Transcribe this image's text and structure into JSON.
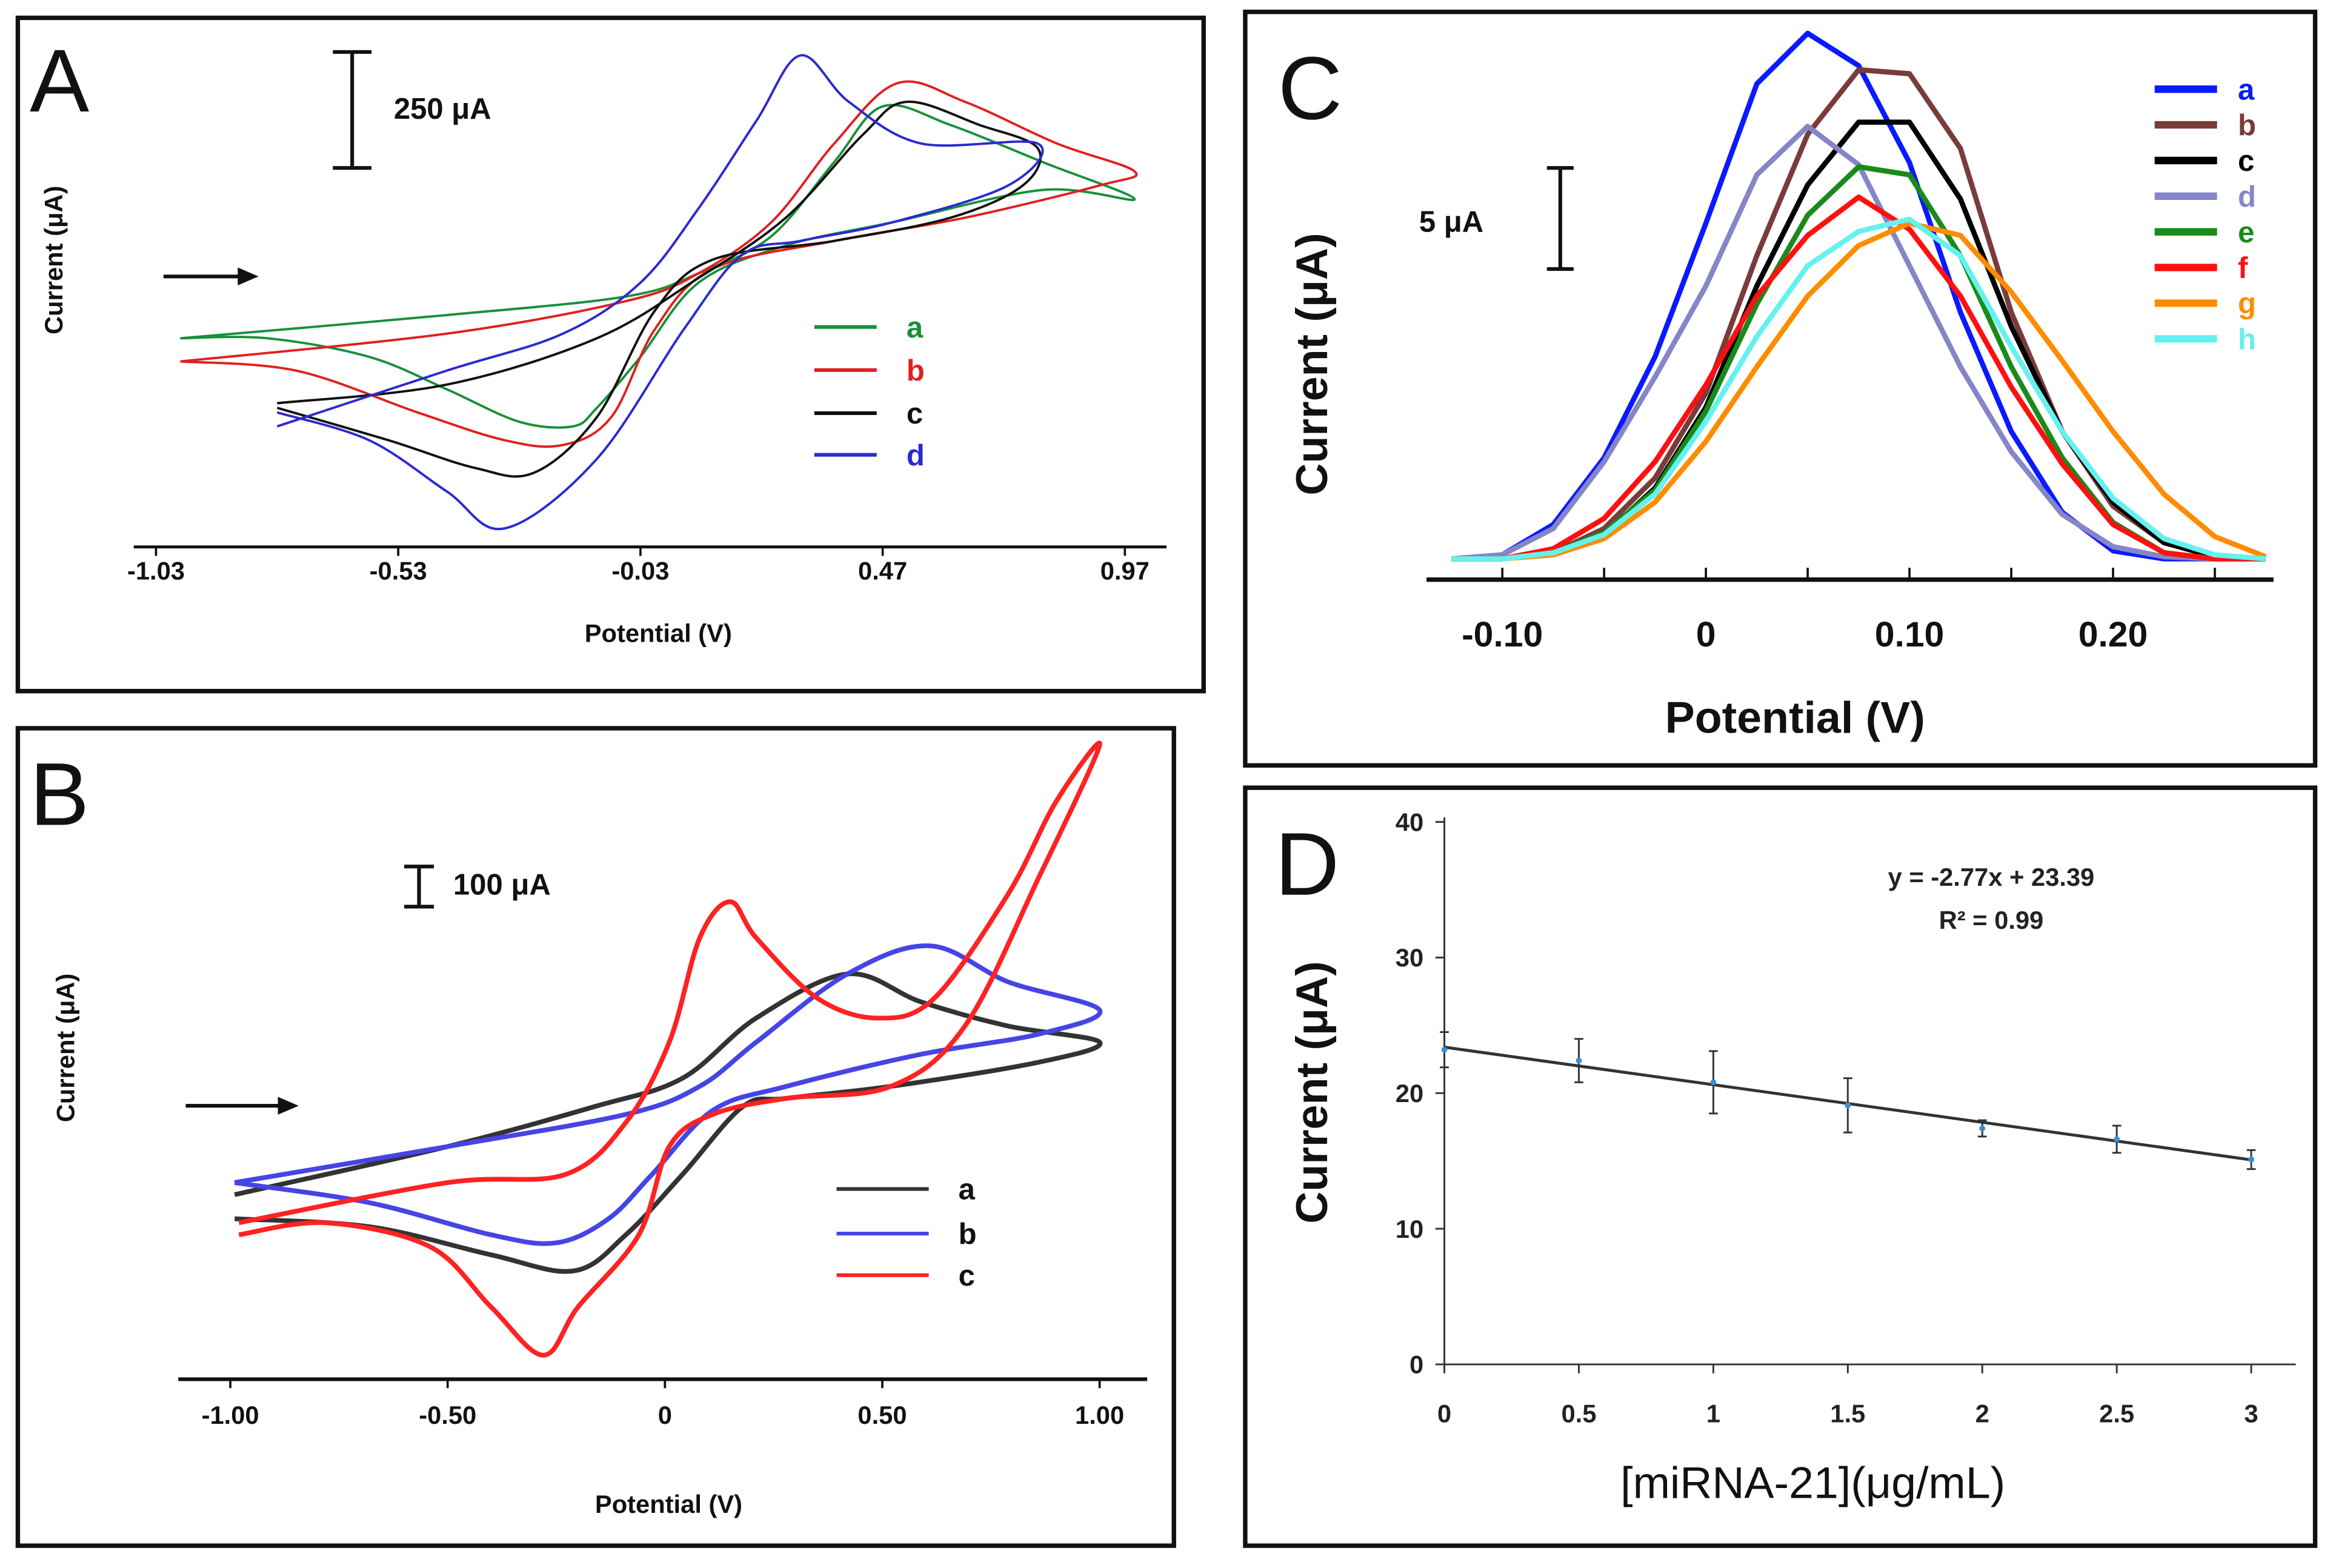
{
  "chart_data": [
    {
      "panel": "A",
      "type": "line",
      "xlabel": "Potential (V)",
      "ylabel": "Current (μA)",
      "scale_bar": "250 μA",
      "scale_bar_value": 250,
      "scan_direction": "arrow-right",
      "xticks": [
        -1.03,
        -0.53,
        -0.03,
        0.47,
        0.97
      ],
      "xtick_labels": [
        "-1.03",
        "-0.53",
        "-0.03",
        "0.47",
        "0.97"
      ],
      "series": [
        {
          "name": "a",
          "color": "#17913a",
          "points": [
            [
              -0.98,
              450
            ],
            [
              -0.43,
              500
            ],
            [
              -0.06,
              540
            ],
            [
              0.09,
              590
            ],
            [
              0.24,
              670
            ],
            [
              0.37,
              830
            ],
            [
              0.47,
              950
            ],
            [
              0.61,
              910
            ],
            [
              0.8,
              830
            ],
            [
              0.99,
              750
            ],
            [
              0.8,
              770
            ],
            [
              0.49,
              700
            ],
            [
              0.27,
              650
            ],
            [
              0.09,
              570
            ],
            [
              -0.03,
              410
            ],
            [
              -0.12,
              300
            ],
            [
              -0.17,
              260
            ],
            [
              -0.28,
              270
            ],
            [
              -0.43,
              340
            ],
            [
              -0.59,
              410
            ],
            [
              -0.8,
              450
            ],
            [
              -0.98,
              450
            ]
          ]
        },
        {
          "name": "b",
          "color": "#e02020",
          "points": [
            [
              -0.98,
              400
            ],
            [
              -0.43,
              460
            ],
            [
              -0.06,
              530
            ],
            [
              0.09,
              590
            ],
            [
              0.24,
              700
            ],
            [
              0.37,
              870
            ],
            [
              0.5,
              1000
            ],
            [
              0.64,
              960
            ],
            [
              0.83,
              870
            ],
            [
              0.99,
              810
            ],
            [
              0.92,
              780
            ],
            [
              0.64,
              710
            ],
            [
              0.37,
              660
            ],
            [
              0.12,
              600
            ],
            [
              0.0,
              470
            ],
            [
              -0.09,
              280
            ],
            [
              -0.19,
              220
            ],
            [
              -0.31,
              230
            ],
            [
              -0.49,
              290
            ],
            [
              -0.74,
              380
            ],
            [
              -0.98,
              400
            ]
          ]
        },
        {
          "name": "c",
          "color": "#111111",
          "points": [
            [
              -0.78,
              310
            ],
            [
              -0.43,
              350
            ],
            [
              -0.12,
              450
            ],
            [
              0.09,
              580
            ],
            [
              0.27,
              710
            ],
            [
              0.43,
              890
            ],
            [
              0.52,
              960
            ],
            [
              0.67,
              910
            ],
            [
              0.79,
              860
            ],
            [
              0.76,
              780
            ],
            [
              0.61,
              710
            ],
            [
              0.37,
              660
            ],
            [
              0.12,
              620
            ],
            [
              0.0,
              510
            ],
            [
              -0.12,
              280
            ],
            [
              -0.25,
              160
            ],
            [
              -0.37,
              170
            ],
            [
              -0.55,
              230
            ],
            [
              -0.78,
              300
            ]
          ]
        },
        {
          "name": "d",
          "color": "#2a2ad0",
          "points": [
            [
              -0.78,
              260
            ],
            [
              -0.43,
              380
            ],
            [
              -0.19,
              460
            ],
            [
              -0.03,
              570
            ],
            [
              0.09,
              730
            ],
            [
              0.21,
              920
            ],
            [
              0.3,
              1060
            ],
            [
              0.4,
              960
            ],
            [
              0.55,
              870
            ],
            [
              0.79,
              870
            ],
            [
              0.73,
              780
            ],
            [
              0.49,
              700
            ],
            [
              0.3,
              660
            ],
            [
              0.18,
              630
            ],
            [
              0.06,
              470
            ],
            [
              -0.12,
              190
            ],
            [
              -0.31,
              40
            ],
            [
              -0.43,
              120
            ],
            [
              -0.59,
              230
            ],
            [
              -0.78,
              290
            ]
          ]
        }
      ]
    },
    {
      "panel": "B",
      "type": "line",
      "xlabel": "Potential (V)",
      "ylabel": "Current (μA)",
      "scale_bar": "100 μA",
      "scale_bar_value": 100,
      "scan_direction": "arrow-right",
      "xticks": [
        -1.0,
        -0.5,
        0,
        0.5,
        1.0
      ],
      "xtick_labels": [
        "-1.00",
        "-0.50",
        "0",
        "0.50",
        "1.00"
      ],
      "series": [
        {
          "name": "a",
          "color": "#333333",
          "points": [
            [
              -0.99,
              460
            ],
            [
              -0.5,
              580
            ],
            [
              -0.16,
              680
            ],
            [
              0.04,
              750
            ],
            [
              0.21,
              900
            ],
            [
              0.42,
              1010
            ],
            [
              0.59,
              940
            ],
            [
              0.79,
              880
            ],
            [
              1.0,
              840
            ],
            [
              0.86,
              790
            ],
            [
              0.52,
              730
            ],
            [
              0.28,
              700
            ],
            [
              0.18,
              680
            ],
            [
              0.04,
              510
            ],
            [
              -0.09,
              360
            ],
            [
              -0.21,
              270
            ],
            [
              -0.4,
              310
            ],
            [
              -0.68,
              380
            ],
            [
              -0.99,
              400
            ]
          ]
        },
        {
          "name": "b",
          "color": "#4545e6",
          "points": [
            [
              -0.99,
              490
            ],
            [
              -0.5,
              580
            ],
            [
              -0.09,
              660
            ],
            [
              0.08,
              730
            ],
            [
              0.21,
              840
            ],
            [
              0.42,
              1010
            ],
            [
              0.61,
              1080
            ],
            [
              0.79,
              990
            ],
            [
              1.0,
              920
            ],
            [
              0.86,
              860
            ],
            [
              0.59,
              810
            ],
            [
              0.28,
              730
            ],
            [
              0.11,
              670
            ],
            [
              -0.03,
              510
            ],
            [
              -0.13,
              400
            ],
            [
              -0.25,
              340
            ],
            [
              -0.4,
              360
            ],
            [
              -0.68,
              440
            ],
            [
              -0.99,
              490
            ]
          ]
        },
        {
          "name": "c",
          "color": "#ff2222",
          "points": [
            [
              -0.98,
              390
            ],
            [
              -0.5,
              490
            ],
            [
              -0.23,
              510
            ],
            [
              -0.09,
              640
            ],
            [
              0.01,
              840
            ],
            [
              0.08,
              1100
            ],
            [
              0.15,
              1190
            ],
            [
              0.21,
              1100
            ],
            [
              0.35,
              950
            ],
            [
              0.49,
              900
            ],
            [
              0.62,
              950
            ],
            [
              0.79,
              1210
            ],
            [
              0.9,
              1440
            ],
            [
              1.0,
              1580
            ],
            [
              0.86,
              1250
            ],
            [
              0.69,
              880
            ],
            [
              0.52,
              730
            ],
            [
              0.28,
              700
            ],
            [
              0.11,
              660
            ],
            [
              0.01,
              580
            ],
            [
              -0.06,
              360
            ],
            [
              -0.2,
              180
            ],
            [
              -0.28,
              60
            ],
            [
              -0.4,
              180
            ],
            [
              -0.54,
              330
            ],
            [
              -0.78,
              390
            ],
            [
              -0.98,
              360
            ]
          ]
        }
      ]
    },
    {
      "panel": "C",
      "type": "line",
      "xlabel": "Potential (V)",
      "ylabel": "Current (μA)",
      "scale_bar": "5 μA",
      "scale_bar_value": 5,
      "xticks": [
        -0.1,
        0,
        0.1,
        0.2
      ],
      "xtick_labels": [
        "-0.10",
        "0",
        "0.10",
        "0.20"
      ],
      "x": [
        -0.125,
        -0.1,
        -0.075,
        -0.05,
        -0.025,
        0,
        0.025,
        0.05,
        0.075,
        0.1,
        0.125,
        0.15,
        0.175,
        0.2,
        0.225,
        0.25,
        0.275
      ],
      "series": [
        {
          "name": "a",
          "color": "#0a1aff",
          "values": [
            0,
            0.2,
            1.7,
            5.0,
            10,
            16.6,
            23.5,
            26,
            24.4,
            19.6,
            12.2,
            6.3,
            2.3,
            0.4,
            0,
            0,
            0
          ]
        },
        {
          "name": "b",
          "color": "#7a3b3b",
          "values": [
            0,
            0,
            0.3,
            1.5,
            4,
            8.2,
            15,
            21,
            24.2,
            24,
            20.3,
            12.2,
            6.3,
            2.6,
            0.8,
            0.1,
            0
          ]
        },
        {
          "name": "c",
          "color": "#000000",
          "values": [
            0,
            0,
            0.3,
            1.2,
            3.5,
            7.5,
            13.5,
            18.5,
            21.6,
            21.6,
            17.8,
            11.5,
            6.3,
            2.8,
            0.8,
            0.1,
            0
          ]
        },
        {
          "name": "d",
          "color": "#8585c8",
          "values": [
            0,
            0.2,
            1.5,
            4.8,
            9,
            13.5,
            19,
            21.4,
            19.5,
            14.5,
            9.5,
            5.3,
            2.2,
            0.6,
            0.1,
            0,
            0
          ]
        },
        {
          "name": "e",
          "color": "#1a8a1a",
          "values": [
            0,
            0,
            0.3,
            1.3,
            3.4,
            7.3,
            12.6,
            17,
            19.4,
            19,
            15,
            9.5,
            5,
            1.8,
            0.3,
            0,
            0
          ]
        },
        {
          "name": "f",
          "color": "#ff1010",
          "values": [
            0,
            0,
            0.5,
            2,
            4.8,
            8.6,
            13,
            16,
            17.9,
            16.3,
            13,
            8.5,
            4.7,
            1.7,
            0.3,
            0,
            0
          ]
        },
        {
          "name": "g",
          "color": "#ff8c00",
          "values": [
            0,
            0,
            0.2,
            1,
            2.8,
            5.8,
            9.5,
            13,
            15.5,
            16.6,
            16,
            13.2,
            9.8,
            6.3,
            3.2,
            1.1,
            0.1
          ]
        },
        {
          "name": "h",
          "color": "#66f0f0",
          "values": [
            0,
            0,
            0.3,
            1.2,
            3.2,
            6.8,
            11,
            14.5,
            16.2,
            16.8,
            15,
            10.5,
            6.3,
            3,
            1,
            0.2,
            0
          ]
        }
      ]
    },
    {
      "panel": "D",
      "type": "scatter",
      "xlabel": "[miRNA-21](μg/mL)",
      "ylabel": "Current (μA)",
      "xlim": [
        0,
        3
      ],
      "ylim": [
        0,
        40
      ],
      "xticks": [
        0,
        0.5,
        1,
        1.5,
        2,
        2.5,
        3
      ],
      "xtick_labels": [
        "0",
        "0.5",
        "1",
        "1.5",
        "2",
        "2.5",
        "3"
      ],
      "yticks": [
        0,
        10,
        20,
        30,
        40
      ],
      "ytick_labels": [
        "0",
        "10",
        "20",
        "30",
        "40"
      ],
      "x": [
        0,
        0.5,
        1,
        1.5,
        2,
        2.5,
        3
      ],
      "y": [
        23.2,
        22.4,
        20.8,
        19.1,
        17.4,
        16.6,
        15.1
      ],
      "error": [
        1.3,
        1.6,
        2.3,
        2.0,
        0.6,
        1.0,
        0.7
      ],
      "point_color": "#3a8fd0",
      "fit": {
        "slope": -2.77,
        "intercept": 23.39,
        "equation": "y = -2.77x + 23.39",
        "r2_label": "R² = 0.99"
      }
    }
  ],
  "panel_labels": [
    "A",
    "B",
    "C",
    "D"
  ]
}
